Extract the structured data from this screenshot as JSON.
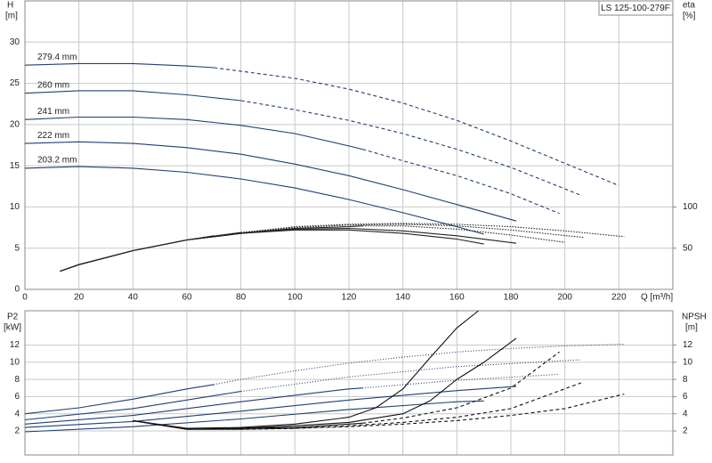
{
  "chart_data": [
    {
      "type": "line",
      "title": "LS 125-100-279F",
      "xlabel": "Q [m³/h]",
      "ylabel": [
        "H",
        "[m]"
      ],
      "y2label": [
        "eta",
        "[%]"
      ],
      "xlim": [
        0,
        240
      ],
      "xticks": [
        0,
        20,
        40,
        60,
        80,
        100,
        120,
        140,
        160,
        180,
        200,
        220
      ],
      "xtick_labels": true,
      "ylim": [
        0,
        35
      ],
      "yticks": [
        0,
        5,
        10,
        15,
        20,
        25,
        30
      ],
      "y2lim": [
        0,
        350
      ],
      "y2ticks": [
        50,
        100
      ],
      "grid": true,
      "series": [
        {
          "name": "279.4 mm",
          "color": "#1f3f73",
          "dash": "4,3",
          "x": [
            0,
            20,
            40,
            60,
            70
          ],
          "values": [
            27.2,
            27.4,
            27.4,
            27.1,
            26.9
          ],
          "dashed_x": [
            70,
            100,
            120,
            140,
            160,
            180,
            200,
            220
          ],
          "dashed_values": [
            26.9,
            25.6,
            24.3,
            22.6,
            20.5,
            18.0,
            15.3,
            12.6
          ]
        },
        {
          "name": "260 mm",
          "color": "#1f3f73",
          "dash": "4,3",
          "x": [
            0,
            20,
            40,
            60,
            80
          ],
          "values": [
            23.8,
            24.1,
            24.1,
            23.6,
            22.9
          ],
          "dashed_x": [
            80,
            100,
            120,
            140,
            160,
            180,
            200,
            206
          ],
          "dashed_values": [
            22.9,
            21.8,
            20.5,
            18.9,
            17.0,
            14.8,
            12.2,
            11.4
          ]
        },
        {
          "name": "241 mm",
          "color": "#1f3f73",
          "dash": "4,3",
          "x": [
            0,
            20,
            40,
            60,
            80,
            100,
            120,
            125
          ],
          "values": [
            20.6,
            20.9,
            20.9,
            20.6,
            19.9,
            18.9,
            17.4,
            17.0
          ],
          "dashed_x": [
            125,
            140,
            160,
            180,
            198
          ],
          "dashed_values": [
            17.0,
            15.6,
            13.8,
            11.6,
            9.2
          ]
        },
        {
          "name": "222 mm",
          "color": "#1f3f73",
          "dash": "4,3",
          "x": [
            0,
            20,
            40,
            60,
            80,
            100,
            120,
            140,
            160,
            182
          ],
          "values": [
            17.7,
            17.9,
            17.7,
            17.2,
            16.4,
            15.2,
            13.8,
            12.1,
            10.3,
            8.3
          ]
        },
        {
          "name": "203.2 mm",
          "color": "#1f3f73",
          "dash": "4,3",
          "x": [
            0,
            20,
            40,
            60,
            80,
            100,
            120,
            140,
            160,
            170
          ],
          "values": [
            14.7,
            14.9,
            14.7,
            14.2,
            13.4,
            12.3,
            10.9,
            9.3,
            7.6,
            6.7
          ]
        },
        {
          "axis": "y2",
          "color": "#222222",
          "dash": "1.5,1.5",
          "x": [
            13,
            20,
            40,
            60,
            80,
            100,
            120,
            140,
            160,
            170
          ],
          "values": [
            22,
            30,
            47,
            60,
            68,
            72,
            72,
            68,
            61,
            55
          ]
        },
        {
          "axis": "y2",
          "color": "#222222",
          "dash": "1.5,1.5",
          "x": [
            13,
            20,
            40,
            60,
            80,
            100,
            120,
            140,
            160,
            182
          ],
          "values": [
            22,
            30,
            47,
            60,
            68,
            73,
            74,
            71,
            65,
            56
          ]
        },
        {
          "axis": "y2",
          "color": "#222222",
          "dash": "1.5,1.5",
          "x": [
            13,
            20,
            40,
            60,
            80,
            100,
            120,
            125
          ],
          "values": [
            22,
            30,
            47,
            60,
            68,
            74,
            76,
            77
          ],
          "dashed_x": [
            125,
            140,
            160,
            180,
            200
          ],
          "dashed_values": [
            77,
            77,
            73,
            66,
            57
          ]
        },
        {
          "axis": "y2",
          "color": "#222222",
          "dash": "1.5,1.5",
          "x": [
            13,
            20,
            40,
            60,
            80
          ],
          "values": [
            22,
            30,
            47,
            60,
            69
          ],
          "dashed_x": [
            80,
            100,
            120,
            140,
            160,
            180,
            207
          ],
          "dashed_values": [
            69,
            75,
            78,
            79,
            77,
            72,
            63
          ]
        },
        {
          "axis": "y2",
          "color": "#222222",
          "dash": "1.5,1.5",
          "x": [
            13,
            20,
            40,
            60,
            70
          ],
          "values": [
            22,
            30,
            47,
            60,
            65
          ],
          "dashed_x": [
            70,
            100,
            120,
            140,
            160,
            180,
            200,
            222
          ],
          "dashed_values": [
            65,
            76,
            79,
            80,
            79,
            76,
            71,
            64
          ]
        }
      ]
    },
    {
      "type": "line",
      "ylabel": [
        "P2",
        "[kW]"
      ],
      "y2label": [
        "NPSH",
        "[m]"
      ],
      "xlim": [
        0,
        240
      ],
      "xticks": [
        0,
        20,
        40,
        60,
        80,
        100,
        120,
        140,
        160,
        180,
        200,
        220
      ],
      "xtick_labels": false,
      "ylim": [
        -0.8,
        16
      ],
      "yticks": [
        2,
        4,
        6,
        8,
        10,
        12
      ],
      "y2lim": [
        -0.8,
        16
      ],
      "y2ticks": [
        2,
        4,
        6,
        8,
        10,
        12
      ],
      "grid": true,
      "series": [
        {
          "color": "#1f3f73",
          "dash": "1,2",
          "x": [
            0,
            20,
            40,
            60,
            70
          ],
          "values": [
            4.0,
            4.7,
            5.7,
            6.9,
            7.4
          ],
          "dashed_x": [
            70,
            80,
            100,
            120,
            140,
            160,
            180,
            200,
            222
          ],
          "dashed_values": [
            7.4,
            8.0,
            9.0,
            9.9,
            10.6,
            11.2,
            11.6,
            11.9,
            12.1
          ]
        },
        {
          "color": "#1f3f73",
          "dash": "1,2",
          "x": [
            0,
            40,
            80
          ],
          "values": [
            3.3,
            4.6,
            6.6
          ],
          "dashed_x": [
            80,
            120,
            160,
            206
          ],
          "dashed_values": [
            6.6,
            8.3,
            9.5,
            10.3
          ]
        },
        {
          "color": "#1f3f73",
          "dash": "1,2",
          "x": [
            0,
            40,
            80,
            120,
            125
          ],
          "values": [
            2.8,
            3.8,
            5.4,
            6.9,
            7.0
          ],
          "dashed_x": [
            125,
            160,
            198
          ],
          "dashed_values": [
            7.0,
            7.9,
            8.6
          ]
        },
        {
          "color": "#1f3f73",
          "dash": "1,2",
          "x": [
            0,
            40,
            80,
            120,
            160,
            182
          ],
          "values": [
            2.4,
            3.1,
            4.3,
            5.6,
            6.7,
            7.2
          ]
        },
        {
          "color": "#1f3f73",
          "dash": "1,2",
          "x": [
            0,
            40,
            80,
            120,
            160,
            170
          ],
          "values": [
            1.9,
            2.5,
            3.4,
            4.5,
            5.4,
            5.5
          ]
        },
        {
          "axis": "y2",
          "color": "#111111",
          "dash": "4,3",
          "x": [
            40,
            60,
            80,
            100,
            120,
            130,
            140,
            150,
            160,
            168
          ],
          "values": [
            3.2,
            2.3,
            2.4,
            2.8,
            3.6,
            4.7,
            6.9,
            10.5,
            14.0,
            16.0
          ]
        },
        {
          "axis": "y2",
          "color": "#111111",
          "dash": "4,3",
          "x": [
            40,
            60,
            80,
            100,
            120,
            140,
            150,
            160,
            170,
            182
          ],
          "values": [
            3.2,
            2.2,
            2.3,
            2.6,
            3.0,
            4.0,
            5.5,
            8.0,
            10.0,
            12.8
          ]
        },
        {
          "axis": "y2",
          "color": "#111111",
          "dash": "4,3",
          "x": [
            40,
            60,
            80,
            100,
            120,
            125
          ],
          "values": [
            3.2,
            2.2,
            2.3,
            2.4,
            2.8,
            2.9
          ],
          "dashed_x": [
            125,
            140,
            160,
            180,
            198
          ],
          "dashed_values": [
            2.9,
            3.5,
            4.7,
            7.0,
            11.2
          ]
        },
        {
          "axis": "y2",
          "color": "#111111",
          "dash": "4,3",
          "x": [
            40,
            60,
            80
          ],
          "values": [
            3.2,
            2.2,
            2.2
          ],
          "dashed_x": [
            80,
            100,
            120,
            140,
            160,
            180,
            206
          ],
          "dashed_values": [
            2.2,
            2.3,
            2.6,
            3.0,
            3.6,
            4.6,
            7.6
          ]
        },
        {
          "axis": "y2",
          "color": "#111111",
          "dash": "4,3",
          "x": [
            40,
            60,
            70
          ],
          "values": [
            3.2,
            2.2,
            2.2
          ],
          "dashed_x": [
            70,
            80,
            100,
            120,
            140,
            160,
            180,
            200,
            222
          ],
          "dashed_values": [
            2.2,
            2.2,
            2.3,
            2.5,
            2.8,
            3.2,
            3.8,
            4.6,
            6.3
          ]
        }
      ]
    }
  ]
}
